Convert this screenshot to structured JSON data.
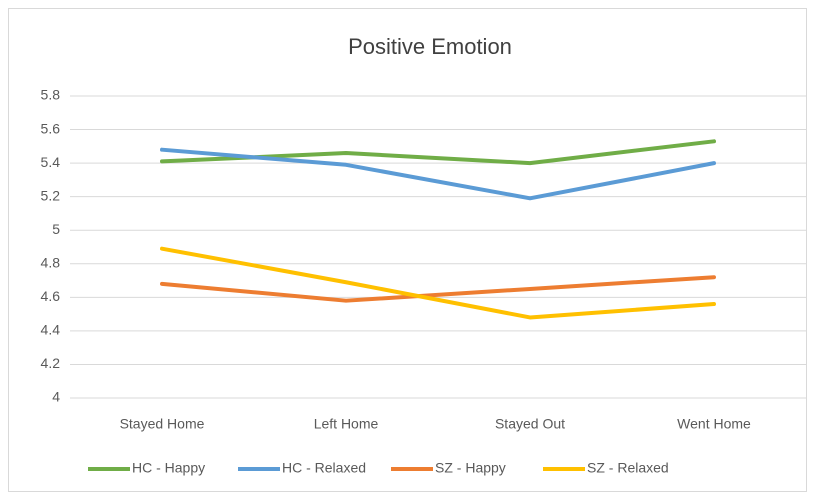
{
  "chart_data": {
    "type": "line",
    "title": "Positive Emotion",
    "categories": [
      "Stayed Home",
      "Left Home",
      "Stayed Out",
      "Went Home"
    ],
    "series": [
      {
        "name": "HC - Happy",
        "color": "#70ad47",
        "values": [
          5.41,
          5.46,
          5.4,
          5.53
        ]
      },
      {
        "name": "HC - Relaxed",
        "color": "#5b9bd5",
        "values": [
          5.48,
          5.39,
          5.19,
          5.4
        ]
      },
      {
        "name": "SZ - Happy",
        "color": "#ed7d31",
        "values": [
          4.68,
          4.58,
          4.65,
          4.72
        ]
      },
      {
        "name": "SZ - Relaxed",
        "color": "#ffc000",
        "values": [
          4.89,
          4.69,
          4.48,
          4.56
        ]
      }
    ],
    "ylim": [
      4,
      5.8
    ],
    "yticks": [
      4,
      4.2,
      4.4,
      4.6,
      4.8,
      5,
      5.2,
      5.4,
      5.6,
      5.8
    ],
    "grid": true,
    "legend": "bottom"
  }
}
